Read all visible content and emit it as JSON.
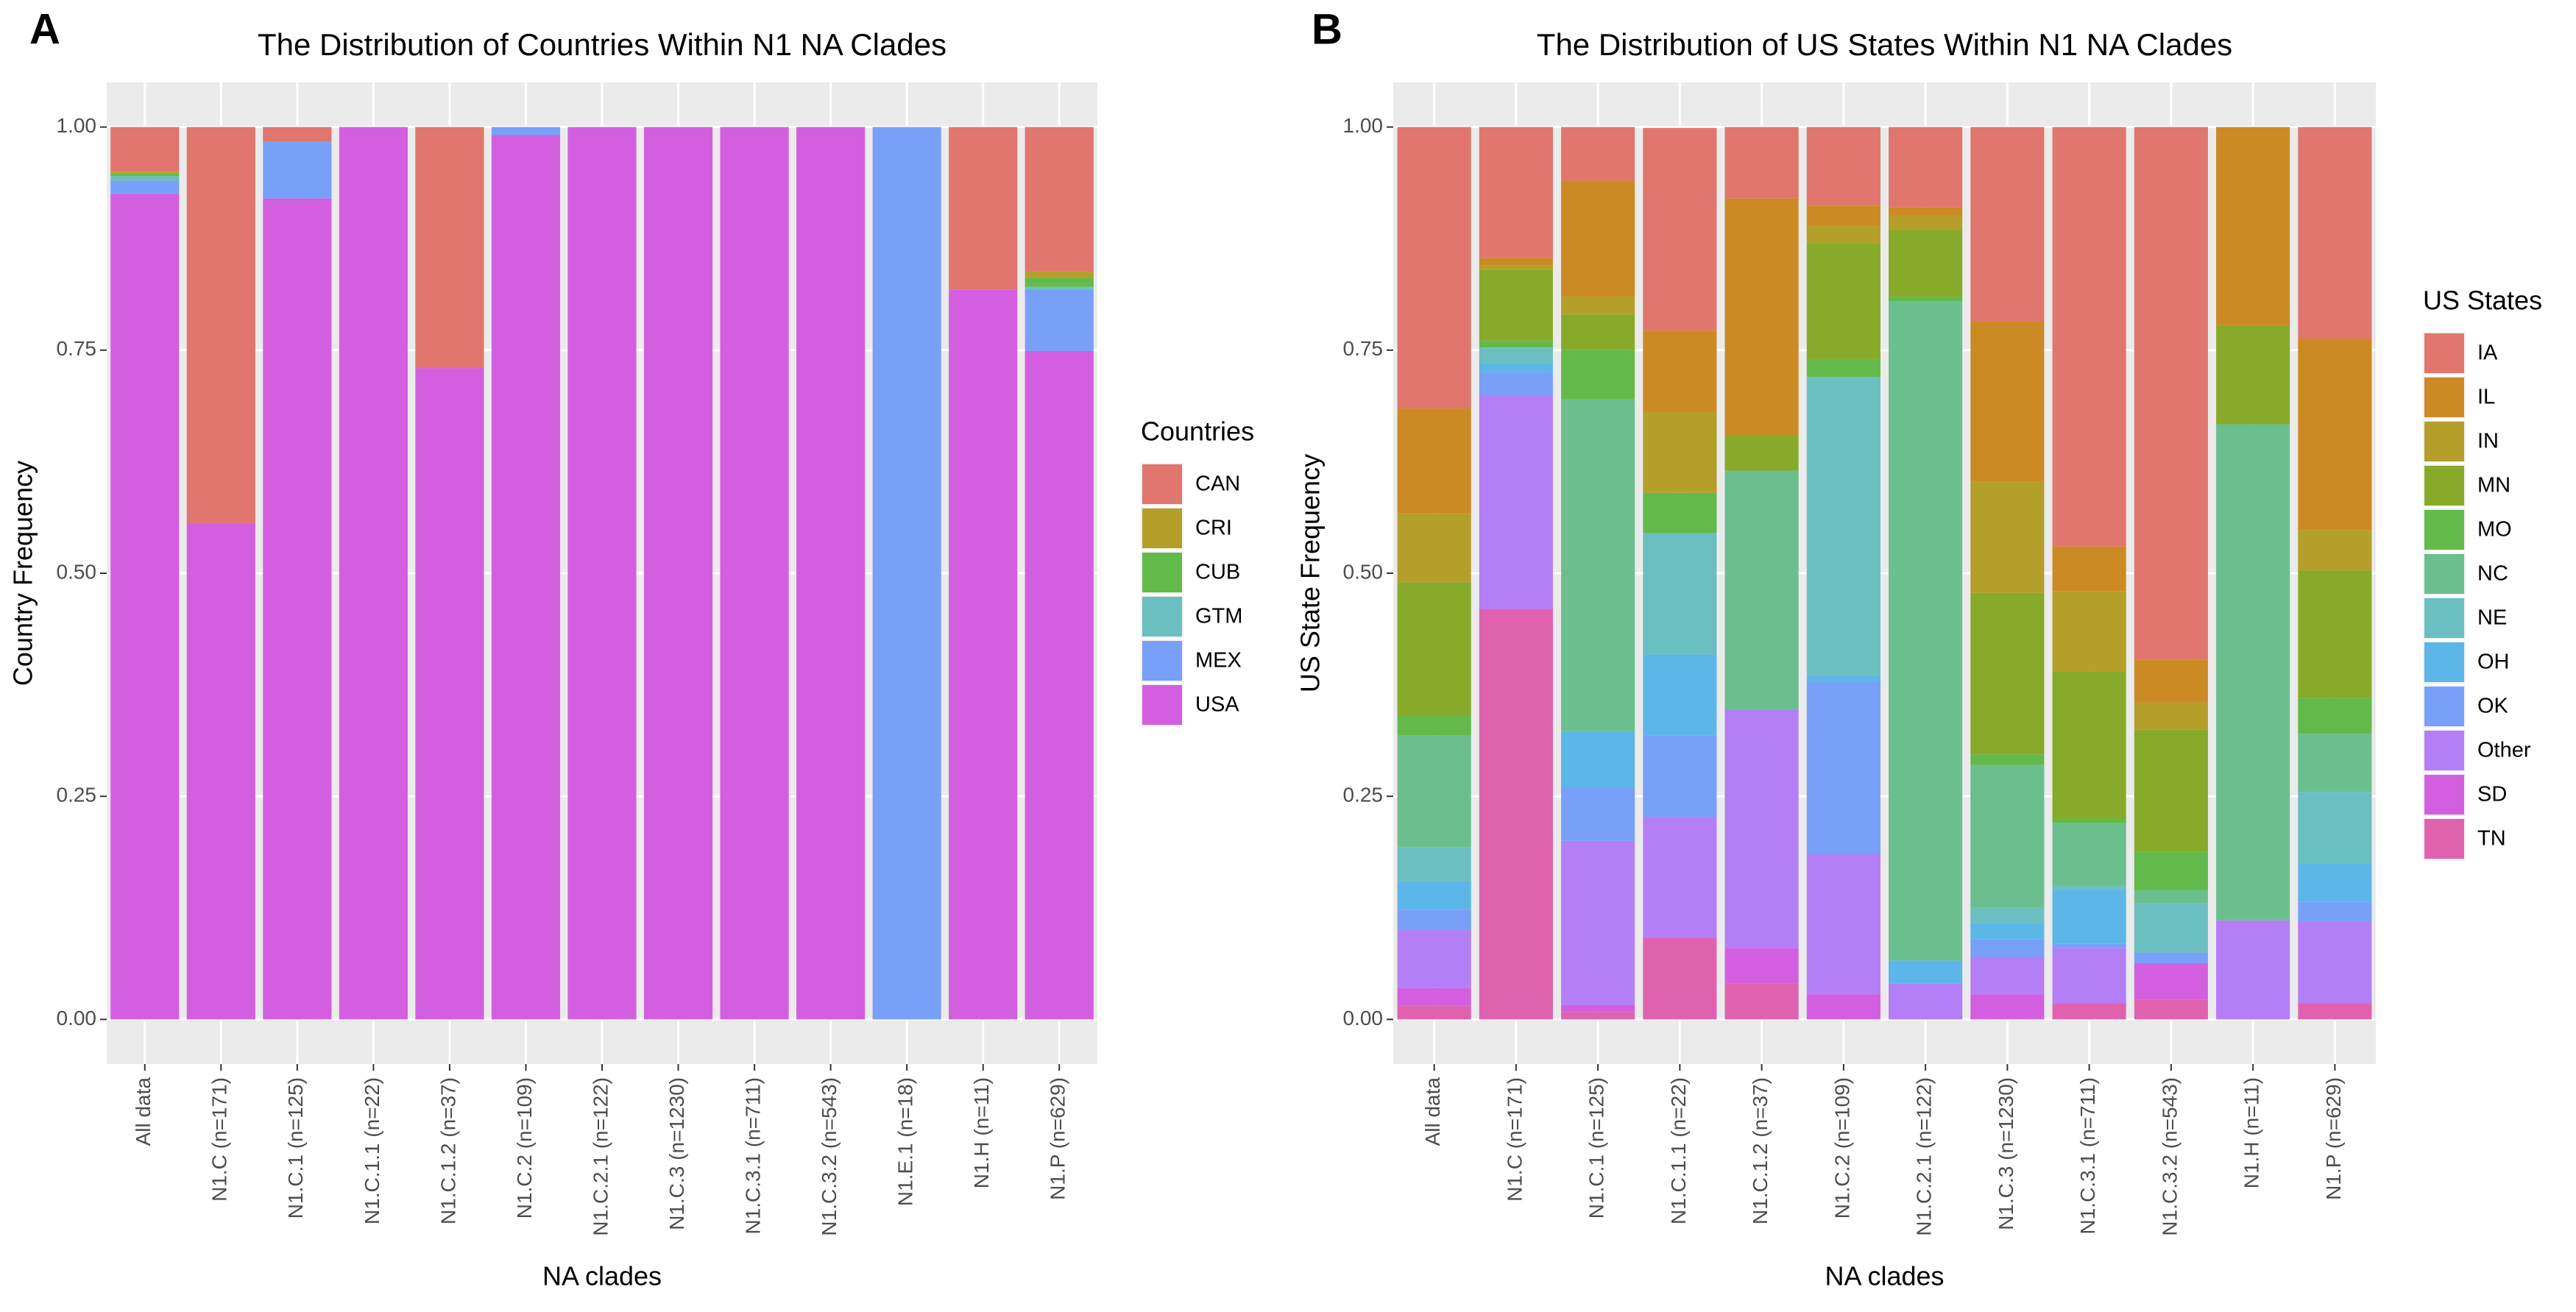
{
  "chart_data": [
    {
      "type": "bar",
      "stacked": true,
      "panel_label": "A",
      "title": "The Distribution of Countries Within N1 NA Clades",
      "x_label": "NA clades",
      "y_label": "Country Frequency",
      "legend_title": "Countries",
      "categories": [
        "All data",
        "N1.C (n=171)",
        "N1.C.1 (n=125)",
        "N1.C.1.1 (n=22)",
        "N1.C.1.2 (n=37)",
        "N1.C.2 (n=109)",
        "N1.C.2.1 (n=122)",
        "N1.C.3 (n=1230)",
        "N1.C.3.1 (n=711)",
        "N1.C.3.2 (n=543)",
        "N1.E.1 (n=18)",
        "N1.H (n=11)",
        "N1.P (n=629)"
      ],
      "series": [
        {
          "name": "CAN",
          "color": "#E0766D",
          "values": [
            0.05,
            0.444,
            0.016,
            0,
            0.27,
            0,
            0,
            0,
            0,
            0,
            0,
            0.182,
            0.162
          ]
        },
        {
          "name": "CRI",
          "color": "#B39F2A",
          "values": [
            0.002,
            0,
            0,
            0,
            0,
            0,
            0,
            0,
            0,
            0,
            0,
            0,
            0.007
          ]
        },
        {
          "name": "CUB",
          "color": "#63BA4A",
          "values": [
            0.003,
            0,
            0,
            0,
            0,
            0,
            0,
            0,
            0,
            0,
            0,
            0,
            0.01
          ]
        },
        {
          "name": "GTM",
          "color": "#6BBFC1",
          "values": [
            0.005,
            0,
            0,
            0,
            0,
            0,
            0,
            0,
            0,
            0,
            0,
            0,
            0.003
          ]
        },
        {
          "name": "MEX",
          "color": "#78A0F8",
          "values": [
            0.015,
            0,
            0.064,
            0,
            0,
            0.009,
            0,
            0,
            0,
            0,
            1,
            0,
            0.069
          ]
        },
        {
          "name": "USA",
          "color": "#D35FE0",
          "values": [
            0.925,
            0.556,
            0.92,
            1,
            0.73,
            0.991,
            1,
            1,
            1,
            1,
            0,
            0.818,
            0.749
          ]
        }
      ],
      "ylim": [
        -0.05,
        1.05
      ],
      "yticks": [
        {
          "value": 0,
          "label": "0.00"
        },
        {
          "value": 0.25,
          "label": "0.25"
        },
        {
          "value": 0.5,
          "label": "0.50"
        },
        {
          "value": 0.75,
          "label": "0.75"
        },
        {
          "value": 1,
          "label": "1.00"
        }
      ],
      "grid": true
    },
    {
      "type": "bar",
      "stacked": true,
      "panel_label": "B",
      "title": "The Distribution of US States Within N1 NA Clades",
      "x_label": "NA clades",
      "y_label": "US State Frequency",
      "legend_title": "US States",
      "categories": [
        "All data",
        "N1.C (n=171)",
        "N1.C.1 (n=125)",
        "N1.C.1.1 (n=22)",
        "N1.C.1.2 (n=37)",
        "N1.C.2 (n=109)",
        "N1.C.2.1 (n=122)",
        "N1.C.3 (n=1230)",
        "N1.C.3.1 (n=711)",
        "N1.C.3.2 (n=543)",
        "N1.H (n=11)",
        "N1.P (n=629)"
      ],
      "series": [
        {
          "name": "IA",
          "color": "#E0766D",
          "values": [
            0.315,
            0.147,
            0.06,
            0.227,
            0.08,
            0.088,
            0.09,
            0.218,
            0.47,
            0.597,
            0,
            0.237
          ]
        },
        {
          "name": "IL",
          "color": "#CC8A24",
          "values": [
            0.118,
            0.008,
            0.13,
            0.091,
            0.265,
            0.022,
            0.01,
            0.179,
            0.05,
            0.048,
            0.222,
            0.215
          ]
        },
        {
          "name": "IN",
          "color": "#B39F2A",
          "values": [
            0.077,
            0.005,
            0.02,
            0.091,
            0,
            0.02,
            0.015,
            0.125,
            0.09,
            0.03,
            0,
            0.045
          ]
        },
        {
          "name": "MN",
          "color": "#87AA2B",
          "values": [
            0.15,
            0.08,
            0.04,
            0,
            0.04,
            0.13,
            0.075,
            0.181,
            0.165,
            0.137,
            0.111,
            0.143
          ]
        },
        {
          "name": "MO",
          "color": "#63BA4A",
          "values": [
            0.022,
            0.007,
            0.055,
            0.045,
            0,
            0.02,
            0.005,
            0.012,
            0.005,
            0.043,
            0,
            0.04
          ]
        },
        {
          "name": "NC",
          "color": "#6BBF8E",
          "values": [
            0.125,
            0,
            0.372,
            0,
            0.268,
            0,
            0.739,
            0.16,
            0.07,
            0.015,
            0.556,
            0.065
          ]
        },
        {
          "name": "NE",
          "color": "#6BBFC1",
          "values": [
            0.038,
            0.018,
            0,
            0.136,
            0,
            0.335,
            0,
            0.017,
            0.005,
            0.055,
            0,
            0.08
          ]
        },
        {
          "name": "OH",
          "color": "#5CB6E8",
          "values": [
            0.032,
            0.01,
            0.063,
            0.091,
            0,
            0.007,
            0.026,
            0.018,
            0.06,
            0,
            0,
            0.043
          ]
        },
        {
          "name": "OK",
          "color": "#78A0F8",
          "values": [
            0.023,
            0.025,
            0.06,
            0.091,
            0,
            0.193,
            0,
            0.02,
            0.005,
            0.012,
            0,
            0.022
          ]
        },
        {
          "name": "Other",
          "color": "#B37EF6",
          "values": [
            0.065,
            0.24,
            0.184,
            0.136,
            0.267,
            0.157,
            0.04,
            0.042,
            0.062,
            0,
            0.111,
            0.092
          ]
        },
        {
          "name": "SD",
          "color": "#D35FE0",
          "values": [
            0.02,
            0,
            0.008,
            0,
            0.04,
            0.028,
            0,
            0.028,
            0,
            0.041,
            0,
            0
          ]
        },
        {
          "name": "TN",
          "color": "#E062AF",
          "values": [
            0.015,
            0.46,
            0.008,
            0.091,
            0.04,
            0,
            0,
            0,
            0.018,
            0.022,
            0,
            0.018
          ]
        }
      ],
      "ylim": [
        -0.05,
        1.05
      ],
      "yticks": [
        {
          "value": 0,
          "label": "0.00"
        },
        {
          "value": 0.25,
          "label": "0.25"
        },
        {
          "value": 0.5,
          "label": "0.50"
        },
        {
          "value": 0.75,
          "label": "0.75"
        },
        {
          "value": 1,
          "label": "1.00"
        }
      ],
      "grid": true
    }
  ]
}
